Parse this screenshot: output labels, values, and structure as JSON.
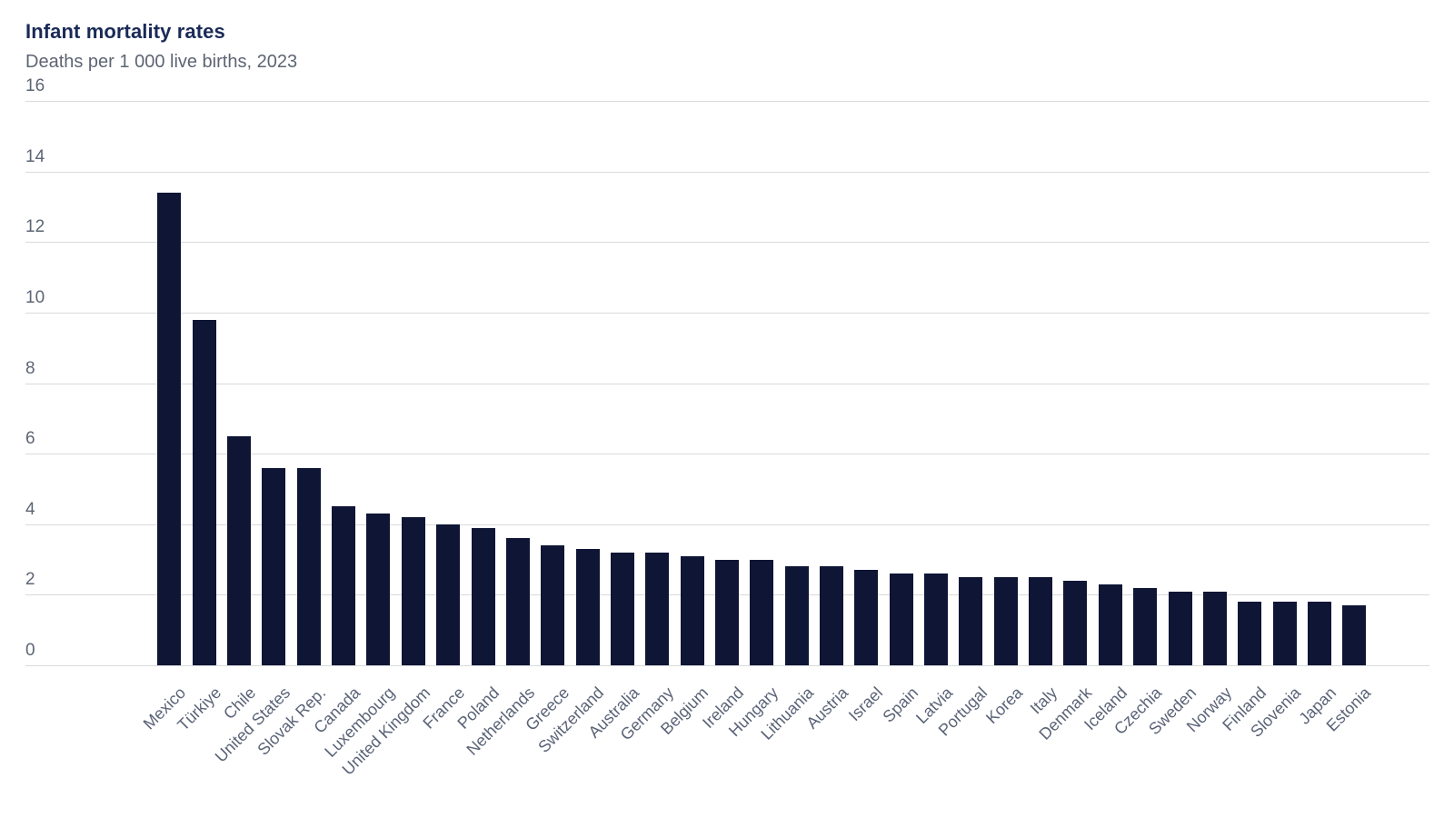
{
  "header": {
    "title": "Infant mortality rates",
    "subtitle": "Deaths per 1 000 live births, 2023"
  },
  "colors": {
    "bar": "#0f1535",
    "title": "#1a2a57",
    "subtitle": "#5d6574",
    "y_tick_label": "#5d6574",
    "x_tick_label": "#5a6377",
    "gridline": "#d9dadb",
    "background": "#ffffff"
  },
  "chart_data": {
    "type": "bar",
    "title": "Infant mortality rates",
    "subtitle": "Deaths per 1 000 live births, 2023",
    "ylabel": "Deaths per 1 000 live births",
    "year": "2023",
    "ylim": [
      0,
      16
    ],
    "yticks": [
      0,
      2,
      4,
      6,
      8,
      10,
      12,
      14,
      16
    ],
    "grid": "horizontal",
    "legend": "none",
    "categories": [
      "Mexico",
      "Türkiye",
      "Chile",
      "United States",
      "Slovak Rep.",
      "Canada",
      "Luxembourg",
      "United Kingdom",
      "France",
      "Poland",
      "Netherlands",
      "Greece",
      "Switzerland",
      "Australia",
      "Germany",
      "Belgium",
      "Ireland",
      "Hungary",
      "Lithuania",
      "Austria",
      "Israel",
      "Spain",
      "Latvia",
      "Portugal",
      "Korea",
      "Italy",
      "Denmark",
      "Iceland",
      "Czechia",
      "Sweden",
      "Norway",
      "Finland",
      "Slovenia",
      "Japan",
      "Estonia"
    ],
    "values": [
      13.4,
      9.8,
      6.5,
      5.6,
      5.6,
      4.5,
      4.3,
      4.2,
      4.0,
      3.9,
      3.6,
      3.4,
      3.3,
      3.2,
      3.2,
      3.1,
      3.0,
      3.0,
      2.8,
      2.8,
      2.7,
      2.6,
      2.6,
      2.5,
      2.5,
      2.5,
      2.4,
      2.3,
      2.2,
      2.1,
      2.1,
      1.8,
      1.8,
      1.8,
      1.7
    ]
  }
}
